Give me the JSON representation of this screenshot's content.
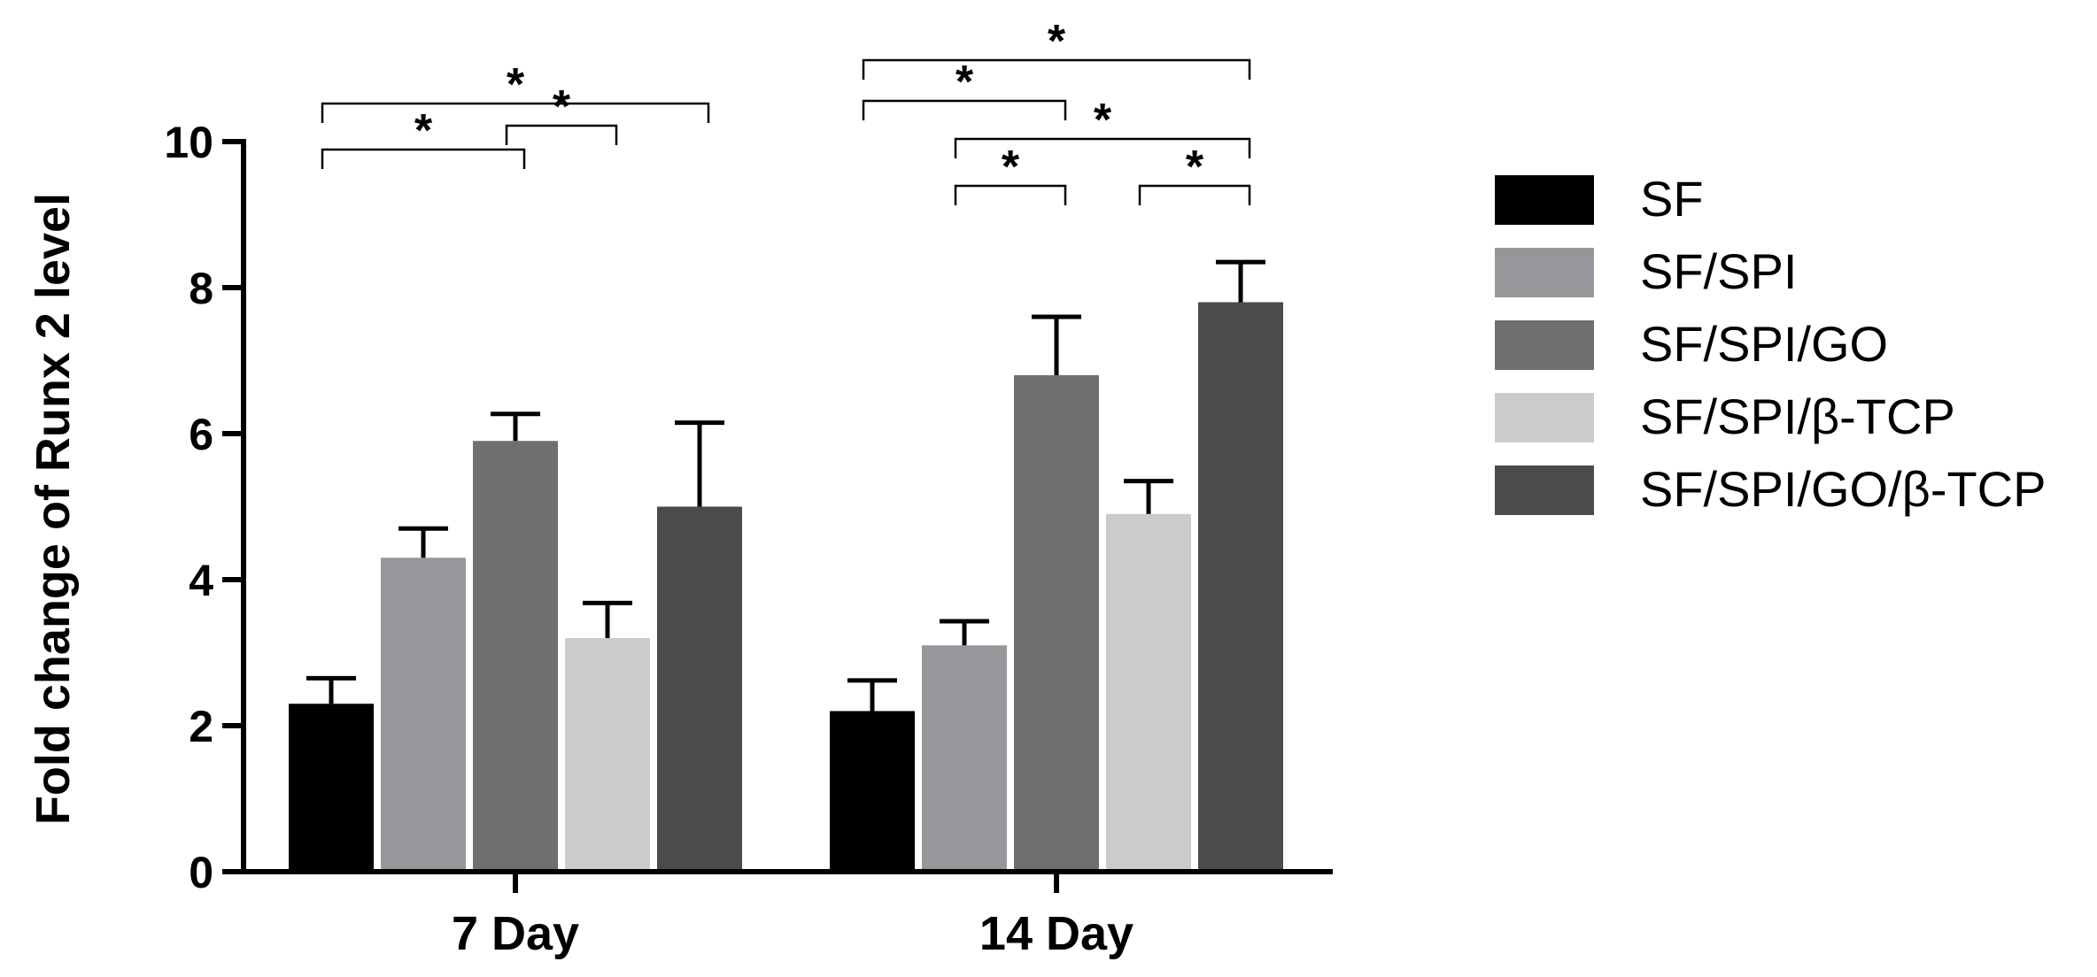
{
  "chart_data": {
    "type": "bar",
    "title": "",
    "xlabel": "",
    "ylabel": "Fold change of Runx 2 level",
    "ylim": [
      0,
      10
    ],
    "yticks": [
      0,
      2,
      4,
      6,
      8,
      10
    ],
    "categories": [
      "7 Day",
      "14 Day"
    ],
    "series": [
      {
        "name": "SF",
        "color": "#000000",
        "values": [
          2.3,
          2.2
        ],
        "errors": [
          0.35,
          0.42
        ]
      },
      {
        "name": "SF/SPI",
        "color": "#97979b",
        "values": [
          4.3,
          3.1
        ],
        "errors": [
          0.4,
          0.33
        ]
      },
      {
        "name": "SF/SPI/GO",
        "color": "#6f6f6f",
        "values": [
          5.9,
          6.8
        ],
        "errors": [
          0.37,
          0.8
        ]
      },
      {
        "name": "SF/SPI/β-TCP",
        "color": "#cbcbcb",
        "values": [
          3.2,
          4.9
        ],
        "errors": [
          0.48,
          0.45
        ]
      },
      {
        "name": "SF/SPI/GO/β-TCP",
        "color": "#4b4b4b",
        "values": [
          5.0,
          7.8
        ],
        "errors": [
          1.15,
          0.55
        ]
      }
    ],
    "legend_position": "right",
    "significance": [
      {
        "category": 0,
        "from_series": 0,
        "to_series": 2,
        "label": "*"
      },
      {
        "category": 0,
        "from_series": 0,
        "to_series": 4,
        "label": "*"
      },
      {
        "category": 0,
        "from_series": 2,
        "to_series": 3,
        "label": "*"
      },
      {
        "category": 1,
        "from_series": 0,
        "to_series": 2,
        "label": "*"
      },
      {
        "category": 1,
        "from_series": 0,
        "to_series": 4,
        "label": "*"
      },
      {
        "category": 1,
        "from_series": 1,
        "to_series": 2,
        "label": "*"
      },
      {
        "category": 1,
        "from_series": 1,
        "to_series": 4,
        "label": "*"
      },
      {
        "category": 1,
        "from_series": 3,
        "to_series": 4,
        "label": "*"
      }
    ]
  }
}
